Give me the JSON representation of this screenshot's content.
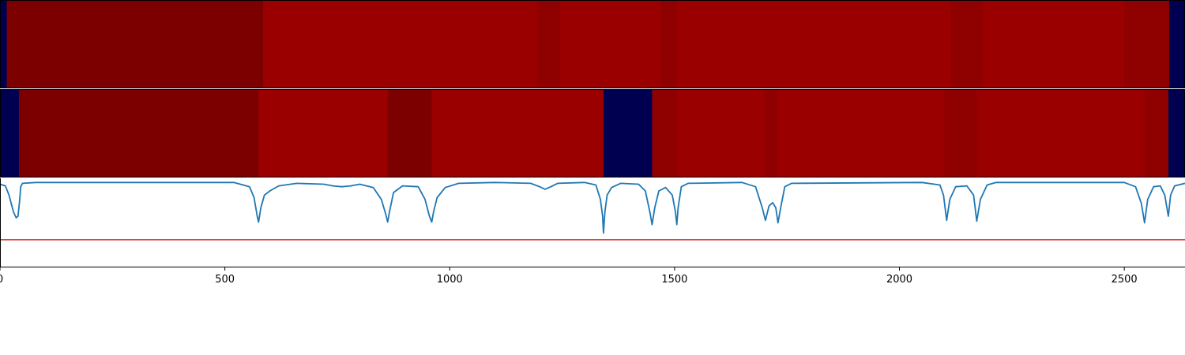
{
  "chart_data": {
    "type": "heatmap",
    "xlim": [
      0,
      2635
    ],
    "x_ticks": [
      0,
      500,
      1000,
      1500,
      2000,
      2500
    ],
    "x_tick_labels": [
      "0",
      "500",
      "1000",
      "1500",
      "2000",
      "2500"
    ],
    "colors": {
      "blue": "#000050",
      "dark": "#7d0000",
      "mid": "#8f0000",
      "red": "#9b0000",
      "line": "#1f77b4",
      "threshold": "#d62728",
      "axis": "#000000"
    },
    "heatmap_rows": [
      {
        "segments": [
          {
            "start": 0,
            "end": 15,
            "level": "blue"
          },
          {
            "start": 15,
            "end": 585,
            "level": "dark"
          },
          {
            "start": 585,
            "end": 1195,
            "level": "red"
          },
          {
            "start": 1195,
            "end": 1245,
            "level": "mid"
          },
          {
            "start": 1245,
            "end": 1470,
            "level": "red"
          },
          {
            "start": 1470,
            "end": 1505,
            "level": "mid"
          },
          {
            "start": 1505,
            "end": 2115,
            "level": "red"
          },
          {
            "start": 2115,
            "end": 2185,
            "level": "mid"
          },
          {
            "start": 2185,
            "end": 2500,
            "level": "red"
          },
          {
            "start": 2500,
            "end": 2600,
            "level": "mid"
          },
          {
            "start": 2600,
            "end": 2635,
            "level": "blue"
          }
        ]
      },
      {
        "segments": [
          {
            "start": 0,
            "end": 42,
            "level": "blue"
          },
          {
            "start": 42,
            "end": 575,
            "level": "dark"
          },
          {
            "start": 575,
            "end": 862,
            "level": "red"
          },
          {
            "start": 862,
            "end": 960,
            "level": "dark"
          },
          {
            "start": 960,
            "end": 1342,
            "level": "red"
          },
          {
            "start": 1342,
            "end": 1450,
            "level": "blue"
          },
          {
            "start": 1450,
            "end": 1505,
            "level": "mid"
          },
          {
            "start": 1505,
            "end": 1700,
            "level": "red"
          },
          {
            "start": 1700,
            "end": 1728,
            "level": "mid"
          },
          {
            "start": 1728,
            "end": 2100,
            "level": "red"
          },
          {
            "start": 2100,
            "end": 2172,
            "level": "mid"
          },
          {
            "start": 2172,
            "end": 2545,
            "level": "red"
          },
          {
            "start": 2545,
            "end": 2598,
            "level": "mid"
          },
          {
            "start": 2598,
            "end": 2635,
            "level": "blue"
          }
        ]
      }
    ],
    "line_series": {
      "ylim": [
        -1.0,
        0.05
      ],
      "baseline": 0.0,
      "threshold": -0.68,
      "points": [
        [
          0,
          -0.02
        ],
        [
          12,
          -0.04
        ],
        [
          20,
          -0.15
        ],
        [
          30,
          -0.35
        ],
        [
          36,
          -0.42
        ],
        [
          40,
          -0.4
        ],
        [
          44,
          -0.2
        ],
        [
          46,
          -0.05
        ],
        [
          50,
          -0.01
        ],
        [
          80,
          0.0
        ],
        [
          200,
          0.0
        ],
        [
          400,
          0.0
        ],
        [
          520,
          0.0
        ],
        [
          555,
          -0.05
        ],
        [
          565,
          -0.18
        ],
        [
          572,
          -0.4
        ],
        [
          575,
          -0.47
        ],
        [
          580,
          -0.3
        ],
        [
          588,
          -0.15
        ],
        [
          600,
          -0.1
        ],
        [
          620,
          -0.04
        ],
        [
          660,
          -0.01
        ],
        [
          720,
          -0.02
        ],
        [
          740,
          -0.04
        ],
        [
          760,
          -0.05
        ],
        [
          780,
          -0.04
        ],
        [
          800,
          -0.02
        ],
        [
          830,
          -0.06
        ],
        [
          848,
          -0.2
        ],
        [
          858,
          -0.38
        ],
        [
          862,
          -0.47
        ],
        [
          866,
          -0.35
        ],
        [
          875,
          -0.12
        ],
        [
          895,
          -0.04
        ],
        [
          930,
          -0.05
        ],
        [
          945,
          -0.2
        ],
        [
          955,
          -0.4
        ],
        [
          960,
          -0.47
        ],
        [
          964,
          -0.35
        ],
        [
          972,
          -0.18
        ],
        [
          990,
          -0.06
        ],
        [
          1020,
          -0.01
        ],
        [
          1100,
          0.0
        ],
        [
          1180,
          -0.01
        ],
        [
          1200,
          -0.05
        ],
        [
          1212,
          -0.08
        ],
        [
          1225,
          -0.05
        ],
        [
          1240,
          -0.01
        ],
        [
          1300,
          0.0
        ],
        [
          1325,
          -0.03
        ],
        [
          1335,
          -0.2
        ],
        [
          1340,
          -0.4
        ],
        [
          1342,
          -0.6
        ],
        [
          1345,
          -0.35
        ],
        [
          1350,
          -0.15
        ],
        [
          1360,
          -0.06
        ],
        [
          1380,
          -0.01
        ],
        [
          1420,
          -0.02
        ],
        [
          1435,
          -0.1
        ],
        [
          1445,
          -0.35
        ],
        [
          1450,
          -0.5
        ],
        [
          1456,
          -0.3
        ],
        [
          1465,
          -0.1
        ],
        [
          1480,
          -0.06
        ],
        [
          1495,
          -0.15
        ],
        [
          1502,
          -0.35
        ],
        [
          1505,
          -0.5
        ],
        [
          1508,
          -0.3
        ],
        [
          1515,
          -0.05
        ],
        [
          1530,
          -0.01
        ],
        [
          1650,
          0.0
        ],
        [
          1680,
          -0.05
        ],
        [
          1695,
          -0.3
        ],
        [
          1702,
          -0.45
        ],
        [
          1710,
          -0.28
        ],
        [
          1718,
          -0.24
        ],
        [
          1725,
          -0.3
        ],
        [
          1730,
          -0.48
        ],
        [
          1736,
          -0.3
        ],
        [
          1745,
          -0.05
        ],
        [
          1760,
          -0.01
        ],
        [
          2050,
          0.0
        ],
        [
          2090,
          -0.03
        ],
        [
          2098,
          -0.15
        ],
        [
          2105,
          -0.45
        ],
        [
          2112,
          -0.2
        ],
        [
          2125,
          -0.05
        ],
        [
          2150,
          -0.04
        ],
        [
          2165,
          -0.15
        ],
        [
          2172,
          -0.46
        ],
        [
          2180,
          -0.2
        ],
        [
          2195,
          -0.03
        ],
        [
          2215,
          0.0
        ],
        [
          2500,
          0.0
        ],
        [
          2525,
          -0.05
        ],
        [
          2538,
          -0.25
        ],
        [
          2545,
          -0.48
        ],
        [
          2552,
          -0.2
        ],
        [
          2565,
          -0.05
        ],
        [
          2580,
          -0.04
        ],
        [
          2590,
          -0.15
        ],
        [
          2598,
          -0.4
        ],
        [
          2603,
          -0.15
        ],
        [
          2612,
          -0.04
        ],
        [
          2635,
          -0.01
        ]
      ]
    }
  }
}
